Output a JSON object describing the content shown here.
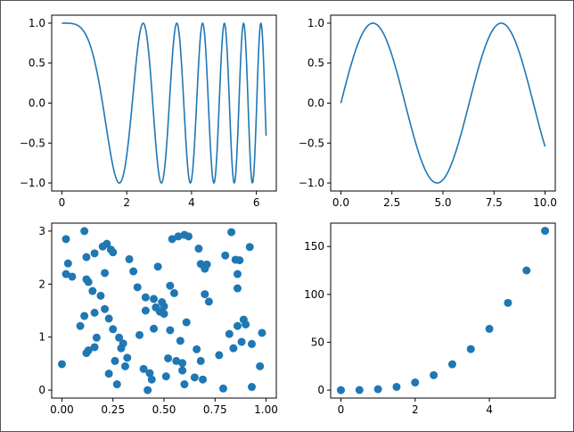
{
  "colors": {
    "series": "#1f77b4",
    "axes": "#000000",
    "background": "#ffffff",
    "window_border": "#555555"
  },
  "chart_data": [
    {
      "type": "line",
      "title": "",
      "xlabel": "",
      "ylabel": "",
      "function": "y = cos(x^2)",
      "series": [
        {
          "x_range": [
            0,
            6.3
          ],
          "points": 400
        }
      ],
      "xlim": [
        -0.315,
        6.615
      ],
      "ylim": [
        -1.1,
        1.1
      ],
      "xticks": [
        0,
        2,
        4,
        6
      ],
      "xtick_labels": [
        "0",
        "2",
        "4",
        "6"
      ],
      "yticks": [
        -1.0,
        -0.5,
        0.0,
        0.5,
        1.0
      ],
      "ytick_labels": [
        "−1.0",
        "−0.5",
        "0.0",
        "0.5",
        "1.0"
      ],
      "grid": false,
      "legend": "none"
    },
    {
      "type": "line",
      "title": "",
      "xlabel": "",
      "ylabel": "",
      "function": "y = sin(x)",
      "series": [
        {
          "x_range": [
            0,
            10
          ],
          "points": 200
        }
      ],
      "xlim": [
        -0.5,
        10.5
      ],
      "ylim": [
        -1.1,
        1.1
      ],
      "xticks": [
        0,
        2.5,
        5,
        7.5,
        10
      ],
      "xtick_labels": [
        "0.0",
        "2.5",
        "5.0",
        "7.5",
        "10.0"
      ],
      "yticks": [
        -1.0,
        -0.5,
        0.0,
        0.5,
        1.0
      ],
      "ytick_labels": [
        "−1.0",
        "−0.5",
        "0.0",
        "0.5",
        "1.0"
      ],
      "grid": false,
      "legend": "none"
    },
    {
      "type": "scatter",
      "title": "",
      "xlabel": "",
      "ylabel": "",
      "xlim": [
        -0.05,
        1.05
      ],
      "ylim": [
        -0.15,
        3.15
      ],
      "xticks": [
        0,
        0.25,
        0.5,
        0.75,
        1.0
      ],
      "xtick_labels": [
        "0.00",
        "0.25",
        "0.50",
        "0.75",
        "1.00"
      ],
      "yticks": [
        0,
        1,
        2,
        3
      ],
      "ytick_labels": [
        "0",
        "1",
        "2",
        "3"
      ],
      "grid": false,
      "legend": "none",
      "series": [
        {
          "points": [
            [
              0.0,
              0.49
            ],
            [
              0.02,
              2.85
            ],
            [
              0.02,
              2.19
            ],
            [
              0.03,
              2.39
            ],
            [
              0.05,
              2.14
            ],
            [
              0.09,
              1.21
            ],
            [
              0.11,
              3.0
            ],
            [
              0.12,
              2.51
            ],
            [
              0.11,
              1.4
            ],
            [
              0.12,
              2.09
            ],
            [
              0.12,
              0.7
            ],
            [
              0.13,
              2.04
            ],
            [
              0.13,
              0.75
            ],
            [
              0.15,
              1.87
            ],
            [
              0.16,
              2.58
            ],
            [
              0.16,
              1.46
            ],
            [
              0.17,
              0.99
            ],
            [
              0.16,
              0.81
            ],
            [
              0.19,
              1.78
            ],
            [
              0.2,
              2.71
            ],
            [
              0.21,
              1.53
            ],
            [
              0.21,
              2.21
            ],
            [
              0.22,
              2.76
            ],
            [
              0.23,
              1.35
            ],
            [
              0.23,
              0.31
            ],
            [
              0.24,
              2.65
            ],
            [
              0.25,
              2.6
            ],
            [
              0.25,
              1.15
            ],
            [
              0.26,
              0.55
            ],
            [
              0.27,
              0.11
            ],
            [
              0.28,
              0.99
            ],
            [
              0.29,
              0.79
            ],
            [
              0.3,
              0.88
            ],
            [
              0.31,
              0.45
            ],
            [
              0.32,
              0.61
            ],
            [
              0.33,
              2.47
            ],
            [
              0.35,
              2.24
            ],
            [
              0.37,
              1.94
            ],
            [
              0.38,
              1.04
            ],
            [
              0.4,
              0.4
            ],
            [
              0.41,
              1.75
            ],
            [
              0.41,
              1.5
            ],
            [
              0.42,
              0.0
            ],
            [
              0.43,
              0.32
            ],
            [
              0.44,
              0.2
            ],
            [
              0.45,
              1.72
            ],
            [
              0.45,
              1.16
            ],
            [
              0.46,
              1.56
            ],
            [
              0.47,
              2.33
            ],
            [
              0.48,
              1.48
            ],
            [
              0.49,
              1.66
            ],
            [
              0.5,
              1.58
            ],
            [
              0.5,
              1.44
            ],
            [
              0.51,
              0.26
            ],
            [
              0.52,
              0.6
            ],
            [
              0.53,
              1.97
            ],
            [
              0.53,
              1.13
            ],
            [
              0.54,
              2.85
            ],
            [
              0.55,
              1.83
            ],
            [
              0.56,
              0.55
            ],
            [
              0.57,
              2.9
            ],
            [
              0.58,
              0.93
            ],
            [
              0.59,
              0.51
            ],
            [
              0.59,
              0.37
            ],
            [
              0.6,
              0.11
            ],
            [
              0.6,
              2.93
            ],
            [
              0.61,
              1.28
            ],
            [
              0.62,
              2.9
            ],
            [
              0.65,
              0.24
            ],
            [
              0.66,
              0.77
            ],
            [
              0.67,
              2.67
            ],
            [
              0.68,
              2.38
            ],
            [
              0.68,
              0.55
            ],
            [
              0.69,
              0.2
            ],
            [
              0.7,
              1.81
            ],
            [
              0.7,
              2.29
            ],
            [
              0.71,
              2.37
            ],
            [
              0.72,
              1.67
            ],
            [
              0.77,
              0.66
            ],
            [
              0.79,
              0.03
            ],
            [
              0.8,
              2.54
            ],
            [
              0.82,
              1.06
            ],
            [
              0.83,
              2.98
            ],
            [
              0.84,
              0.79
            ],
            [
              0.85,
              2.46
            ],
            [
              0.86,
              1.21
            ],
            [
              0.86,
              1.92
            ],
            [
              0.86,
              2.19
            ],
            [
              0.87,
              2.45
            ],
            [
              0.88,
              0.91
            ],
            [
              0.89,
              1.33
            ],
            [
              0.9,
              1.24
            ],
            [
              0.92,
              2.7
            ],
            [
              0.93,
              0.06
            ],
            [
              0.93,
              0.87
            ],
            [
              0.97,
              0.45
            ],
            [
              0.98,
              1.08
            ]
          ]
        }
      ]
    },
    {
      "type": "scatter",
      "title": "",
      "xlabel": "",
      "ylabel": "",
      "xlim": [
        -0.275,
        5.775
      ],
      "ylim": [
        -8.3,
        174.4
      ],
      "xticks": [
        0,
        2,
        4
      ],
      "xtick_labels": [
        "0",
        "2",
        "4"
      ],
      "yticks": [
        0,
        50,
        100,
        150
      ],
      "ytick_labels": [
        "0",
        "50",
        "100",
        "150"
      ],
      "grid": false,
      "legend": "none",
      "series": [
        {
          "x": [
            0,
            0.5,
            1.0,
            1.5,
            2.0,
            2.5,
            3.0,
            3.5,
            4.0,
            4.5,
            5.0,
            5.5
          ],
          "y": [
            0,
            0.1,
            1,
            3.4,
            8,
            15.6,
            27,
            42.9,
            64,
            91.1,
            125,
            166.4
          ]
        }
      ]
    }
  ]
}
